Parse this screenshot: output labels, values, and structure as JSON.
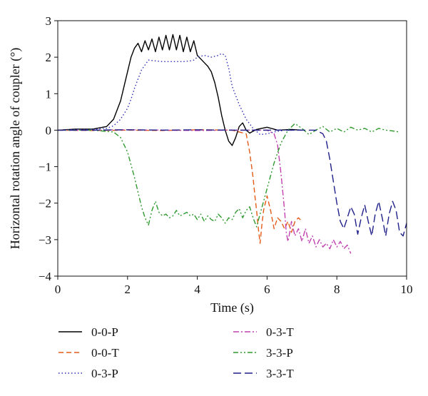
{
  "chart_data": {
    "type": "line",
    "xlabel": "Time (s)",
    "ylabel": "Horizontal rotation angle of coupler (°)",
    "xlim": [
      0,
      10
    ],
    "ylim": [
      -4,
      3
    ],
    "xticks": [
      0,
      2,
      4,
      6,
      8,
      10
    ],
    "yticks": [
      -4,
      -3,
      -2,
      -1,
      0,
      1,
      2,
      3
    ],
    "grid": false,
    "legend_position": "bottom",
    "series": [
      {
        "name": "0-0-P",
        "color": "#000000",
        "dash": "solid",
        "x": [
          0,
          0.5,
          1.0,
          1.4,
          1.6,
          1.8,
          1.9,
          2.0,
          2.1,
          2.2,
          2.3,
          2.4,
          2.5,
          2.6,
          2.7,
          2.8,
          2.9,
          3.0,
          3.1,
          3.2,
          3.3,
          3.4,
          3.5,
          3.6,
          3.7,
          3.8,
          3.9,
          4.0,
          4.1,
          4.2,
          4.3,
          4.4,
          4.5,
          4.6,
          4.7,
          4.8,
          4.9,
          5.0,
          5.1,
          5.2,
          5.3,
          5.4,
          5.5,
          5.7,
          6.0,
          6.3,
          6.7,
          7.0
        ],
        "values": [
          0,
          0.03,
          0.03,
          0.1,
          0.3,
          0.8,
          1.2,
          1.6,
          2.0,
          2.25,
          2.38,
          2.15,
          2.45,
          2.2,
          2.5,
          2.15,
          2.55,
          2.2,
          2.6,
          2.2,
          2.62,
          2.2,
          2.6,
          2.15,
          2.55,
          2.15,
          2.45,
          2.05,
          1.95,
          1.85,
          1.75,
          1.6,
          1.3,
          0.9,
          0.4,
          0.0,
          -0.3,
          -0.42,
          -0.2,
          0.1,
          0.2,
          0.0,
          -0.08,
          0.02,
          0.08,
          0.0,
          0.02,
          0.0
        ]
      },
      {
        "name": "0-0-T",
        "color": "#e35b18",
        "dash": "dashed",
        "x": [
          0,
          1,
          2,
          3,
          4,
          5,
          5.4,
          5.5,
          5.6,
          5.65,
          5.7,
          5.75,
          5.8,
          5.85,
          5.9,
          6.0,
          6.1,
          6.2,
          6.3,
          6.4,
          6.5,
          6.6,
          6.7,
          6.8,
          6.9,
          7.0
        ],
        "values": [
          0,
          -0.01,
          0.0,
          -0.01,
          0.01,
          0.0,
          -0.1,
          -0.6,
          -1.3,
          -1.8,
          -2.2,
          -2.7,
          -3.1,
          -2.6,
          -2.2,
          -1.8,
          -2.2,
          -2.7,
          -2.4,
          -2.5,
          -2.7,
          -2.5,
          -2.8,
          -2.5,
          -2.4,
          -2.5
        ]
      },
      {
        "name": "0-3-P",
        "color": "#2d2db8",
        "dash": "dotted",
        "x": [
          0,
          0.5,
          1.0,
          1.4,
          1.6,
          1.8,
          2.0,
          2.1,
          2.2,
          2.3,
          2.4,
          2.6,
          2.8,
          3.0,
          3.3,
          3.6,
          3.8,
          3.9,
          4.0,
          4.2,
          4.4,
          4.6,
          4.7,
          4.8,
          4.9,
          5.0,
          5.2,
          5.4,
          5.6,
          5.8,
          6.0,
          6.2,
          6.5,
          7.0
        ],
        "values": [
          0,
          0.02,
          0.02,
          0.05,
          0.12,
          0.3,
          0.6,
          0.85,
          1.15,
          1.4,
          1.65,
          1.92,
          1.9,
          1.88,
          1.88,
          1.88,
          1.9,
          1.92,
          2.0,
          2.05,
          2.0,
          2.05,
          2.1,
          2.05,
          1.7,
          1.2,
          0.7,
          0.3,
          0.05,
          -0.12,
          -0.1,
          -0.05,
          0.0,
          0.0
        ]
      },
      {
        "name": "0-3-T",
        "color": "#c040b0",
        "dash": "dashdot",
        "x": [
          0,
          1,
          2,
          3,
          4,
          5,
          6.0,
          6.2,
          6.3,
          6.4,
          6.5,
          6.55,
          6.6,
          6.65,
          6.7,
          6.8,
          6.9,
          7.0,
          7.1,
          7.2,
          7.3,
          7.4,
          7.5,
          7.6,
          7.7,
          7.8,
          7.9,
          8.0,
          8.1,
          8.2,
          8.3,
          8.4
        ],
        "values": [
          0,
          0.0,
          0.01,
          0.0,
          -0.01,
          0.0,
          0.0,
          -0.1,
          -0.4,
          -1.2,
          -2.2,
          -2.8,
          -3.05,
          -2.8,
          -2.5,
          -2.9,
          -2.7,
          -3.05,
          -2.7,
          -3.1,
          -2.9,
          -3.2,
          -3.0,
          -3.2,
          -3.1,
          -3.25,
          -3.0,
          -3.2,
          -3.05,
          -3.25,
          -3.15,
          -3.38
        ]
      },
      {
        "name": "3-3-P",
        "color": "#2f9a2f",
        "dash": "dashdotdot",
        "x": [
          0,
          1.0,
          1.6,
          1.8,
          2.0,
          2.2,
          2.3,
          2.4,
          2.5,
          2.6,
          2.7,
          2.8,
          2.9,
          3.0,
          3.1,
          3.2,
          3.3,
          3.4,
          3.5,
          3.6,
          3.7,
          3.8,
          3.9,
          4.0,
          4.1,
          4.2,
          4.3,
          4.4,
          4.5,
          4.6,
          4.7,
          4.8,
          4.9,
          5.0,
          5.1,
          5.2,
          5.3,
          5.4,
          5.5,
          5.6,
          5.7,
          5.8,
          6.0,
          6.2,
          6.4,
          6.6,
          6.8,
          7.0,
          7.2,
          7.4,
          7.6,
          7.8,
          8.0,
          8.2,
          8.4,
          8.6,
          8.8,
          9.0,
          9.2,
          9.4,
          9.6,
          9.8
        ],
        "values": [
          0,
          0.0,
          -0.05,
          -0.2,
          -0.6,
          -1.3,
          -1.7,
          -2.1,
          -2.4,
          -2.6,
          -2.2,
          -1.95,
          -2.25,
          -2.35,
          -2.3,
          -2.4,
          -2.35,
          -2.2,
          -2.35,
          -2.3,
          -2.25,
          -2.35,
          -2.3,
          -2.45,
          -2.3,
          -2.5,
          -2.35,
          -2.45,
          -2.5,
          -2.3,
          -2.4,
          -2.55,
          -2.4,
          -2.45,
          -2.25,
          -2.15,
          -2.4,
          -2.2,
          -2.1,
          -2.4,
          -2.65,
          -2.3,
          -1.6,
          -0.9,
          -0.35,
          0.0,
          0.18,
          0.05,
          -0.12,
          0.0,
          0.1,
          -0.05,
          0.05,
          -0.05,
          0.08,
          0.0,
          0.05,
          -0.05,
          0.05,
          0.0,
          -0.02,
          -0.05
        ]
      },
      {
        "name": "3-3-T",
        "color": "#1f1f8a",
        "dash": "longdash",
        "x": [
          0,
          1,
          2,
          3,
          4,
          5,
          6,
          7,
          7.4,
          7.6,
          7.7,
          7.8,
          7.9,
          8.0,
          8.1,
          8.2,
          8.3,
          8.4,
          8.5,
          8.6,
          8.7,
          8.8,
          8.9,
          9.0,
          9.1,
          9.2,
          9.3,
          9.4,
          9.5,
          9.6,
          9.7,
          9.8,
          9.9,
          10.0
        ],
        "values": [
          0,
          0.0,
          0.01,
          0.0,
          0.01,
          0.0,
          0.0,
          0.0,
          0.0,
          -0.1,
          -0.3,
          -0.8,
          -1.4,
          -2.0,
          -2.5,
          -2.7,
          -2.4,
          -2.1,
          -2.3,
          -2.85,
          -2.4,
          -2.05,
          -2.5,
          -2.9,
          -2.3,
          -1.95,
          -2.4,
          -2.9,
          -2.3,
          -1.95,
          -2.2,
          -2.8,
          -2.9,
          -2.55
        ]
      }
    ]
  }
}
